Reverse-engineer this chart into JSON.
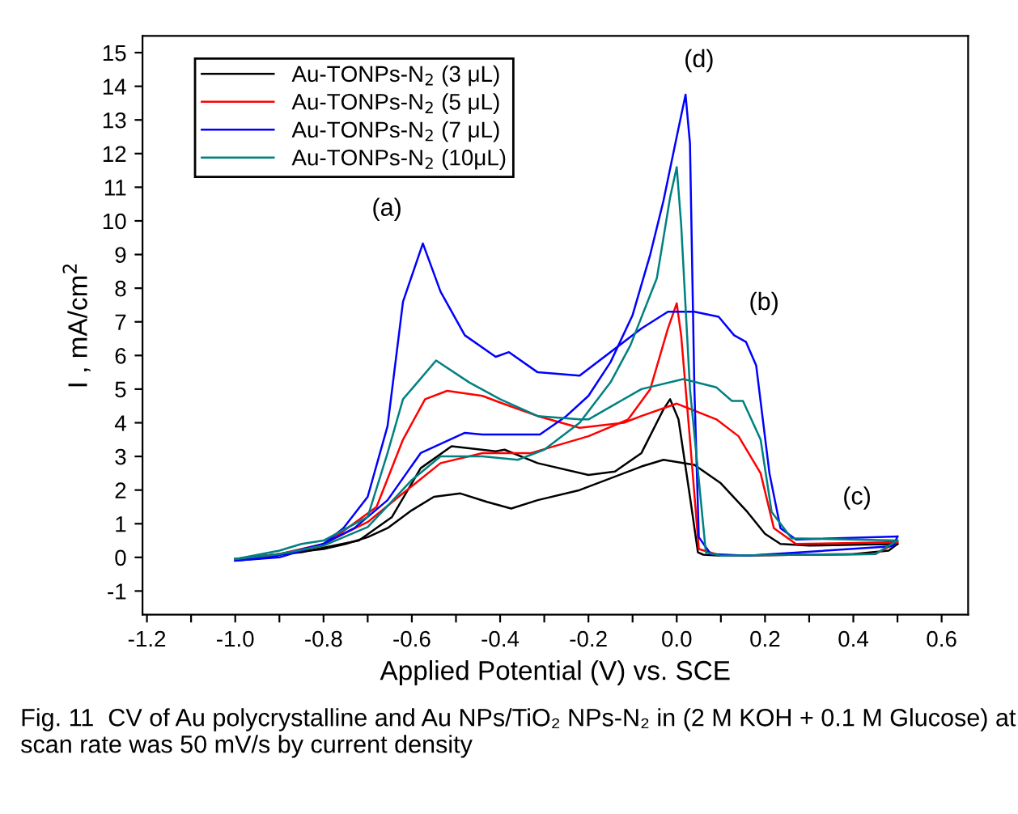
{
  "chart_data": {
    "type": "line",
    "xlabel": "Applied Potential (V) vs. SCE",
    "ylabel": "I , mA/cm$^{2}$",
    "xlim": [
      -1.21,
      0.66
    ],
    "ylim": [
      -1.7,
      15.5
    ],
    "xticks": [
      -1.2,
      {
        "value": -1.1,
        "label": null
      },
      {
        "value": -1.0,
        "label": "-1.0"
      },
      {
        "value": -0.9,
        "label": null
      },
      -0.8,
      {
        "value": -0.7,
        "label": null
      },
      -0.6,
      {
        "value": -0.5,
        "label": null
      },
      -0.4,
      {
        "value": -0.3,
        "label": null
      },
      -0.2,
      {
        "value": -0.1,
        "label": null
      },
      {
        "value": 0,
        "label": "0.0"
      },
      {
        "value": 0.1,
        "label": null
      },
      0.2,
      {
        "value": 0.3,
        "label": null
      },
      0.4,
      {
        "value": 0.5,
        "label": null
      },
      0.6
    ],
    "yticks": [
      -1,
      0,
      1,
      2,
      3,
      4,
      5,
      6,
      7,
      8,
      9,
      10,
      11,
      12,
      13,
      14,
      15
    ],
    "grid": false,
    "legend": "top left",
    "line_style": "solid",
    "marker": "none",
    "series": [
      {
        "name": "Au-TONPs-N$_{2}$ (3 μL)",
        "color": "#000000",
        "x": [
          -1.0,
          -0.9,
          -0.8,
          -0.75,
          -0.7,
          -0.655,
          -0.6,
          -0.55,
          -0.49,
          -0.43,
          -0.375,
          -0.315,
          -0.22,
          -0.08,
          -0.03,
          0.04,
          0.1,
          0.16,
          0.2,
          0.235,
          0.3,
          0.5
        ],
        "values": [
          -0.05,
          0.1,
          0.25,
          0.4,
          0.6,
          0.87,
          1.4,
          1.8,
          1.9,
          1.65,
          1.45,
          1.7,
          2.0,
          2.7,
          2.9,
          2.75,
          2.2,
          1.35,
          0.7,
          0.4,
          0.35,
          0.4
        ]
      },
      {
        "color": "#000000",
        "x": [
          0.5,
          0.48,
          0.4,
          0.1,
          0.06,
          0.048,
          0.03,
          0.004,
          -0.015,
          -0.03,
          -0.08,
          -0.14,
          -0.2,
          -0.315,
          -0.39,
          -0.41,
          -0.51,
          -0.58,
          -0.645,
          -0.72,
          -0.85,
          -1.0
        ],
        "values": [
          0.4,
          0.2,
          0.1,
          0.05,
          0.08,
          0.15,
          1.8,
          4.1,
          4.7,
          4.4,
          3.1,
          2.55,
          2.45,
          2.8,
          3.2,
          3.15,
          3.3,
          2.65,
          1.2,
          0.5,
          0.15,
          -0.05
        ]
      },
      {
        "name": "Au-TONPs-N$_{2}$ (5 μL)",
        "color": "#ff0000",
        "x": [
          -1.0,
          -0.9,
          -0.8,
          -0.68,
          -0.62,
          -0.57,
          -0.52,
          -0.44,
          -0.4,
          -0.315,
          -0.22,
          -0.12,
          -0.08,
          0.0,
          0.09,
          0.14,
          0.19,
          0.22,
          0.27,
          0.5
        ],
        "values": [
          -0.05,
          0.1,
          0.35,
          1.5,
          3.5,
          4.7,
          4.95,
          4.8,
          4.6,
          4.2,
          3.85,
          4.0,
          4.2,
          4.57,
          4.1,
          3.6,
          2.5,
          0.87,
          0.4,
          0.45
        ]
      },
      {
        "color": "#ff0000",
        "x": [
          0.5,
          0.45,
          0.1,
          0.05,
          0.03,
          0.01,
          0.0,
          -0.02,
          -0.06,
          -0.11,
          -0.2,
          -0.33,
          -0.36,
          -0.44,
          -0.535,
          -0.63,
          -0.7,
          -0.8,
          -0.9,
          -1.0
        ],
        "values": [
          0.45,
          0.1,
          0.05,
          0.25,
          3.5,
          6.6,
          7.55,
          6.8,
          5.0,
          4.1,
          3.6,
          3.1,
          3.1,
          3.1,
          2.8,
          1.8,
          1.05,
          0.4,
          0.1,
          -0.05
        ]
      },
      {
        "name": "Au-TONPs-N$_{2}$ (7 μL)",
        "color": "#0000ff",
        "x": [
          -1.0,
          -0.9,
          -0.8,
          -0.755,
          -0.7,
          -0.655,
          -0.62,
          -0.575,
          -0.535,
          -0.48,
          -0.41,
          -0.38,
          -0.315,
          -0.22,
          -0.08,
          -0.02,
          0.04,
          0.095,
          0.13,
          0.157,
          0.18,
          0.21,
          0.235,
          0.27,
          0.5
        ],
        "values": [
          -0.1,
          0.0,
          0.4,
          0.87,
          1.8,
          3.9,
          7.6,
          9.33,
          7.9,
          6.6,
          5.96,
          6.1,
          5.5,
          5.4,
          6.8,
          7.3,
          7.3,
          7.15,
          6.6,
          6.4,
          5.7,
          2.5,
          0.87,
          0.53,
          0.62
        ]
      },
      {
        "color": "#0000ff",
        "x": [
          0.5,
          0.49,
          0.16,
          0.077,
          0.05,
          0.04,
          0.03,
          0.02,
          0.0,
          -0.03,
          -0.06,
          -0.1,
          -0.15,
          -0.2,
          -0.25,
          -0.31,
          -0.44,
          -0.48,
          -0.58,
          -0.655,
          -0.73,
          -0.8,
          -0.92,
          -1.0
        ],
        "values": [
          0.62,
          0.33,
          0.05,
          0.1,
          0.6,
          5.0,
          12.3,
          13.75,
          12.5,
          10.6,
          9.0,
          7.2,
          5.8,
          4.8,
          4.2,
          3.65,
          3.65,
          3.7,
          3.1,
          1.7,
          0.87,
          0.4,
          0.0,
          -0.1
        ]
      },
      {
        "name": "Au-TONPs-N$_{2}$ (10μL)",
        "color": "#008080",
        "x": [
          -1.0,
          -0.9,
          -0.85,
          -0.8,
          -0.7,
          -0.655,
          -0.62,
          -0.545,
          -0.47,
          -0.4,
          -0.315,
          -0.22,
          -0.2,
          -0.08,
          0.015,
          0.09,
          0.125,
          0.15,
          0.19,
          0.215,
          0.26,
          0.5
        ],
        "values": [
          -0.05,
          0.2,
          0.4,
          0.5,
          1.2,
          3.1,
          4.7,
          5.85,
          5.2,
          4.7,
          4.2,
          4.1,
          4.1,
          5.0,
          5.3,
          5.05,
          4.65,
          4.65,
          3.5,
          1.35,
          0.57,
          0.5
        ]
      },
      {
        "color": "#008080",
        "x": [
          0.5,
          0.45,
          0.1,
          0.066,
          0.03,
          0.01,
          0.0,
          -0.015,
          -0.045,
          -0.105,
          -0.15,
          -0.22,
          -0.3,
          -0.36,
          -0.44,
          -0.535,
          -0.6,
          -0.65,
          -0.7,
          -0.8,
          -0.9,
          -1.0
        ],
        "values": [
          0.5,
          0.1,
          0.05,
          0.15,
          5.0,
          9.9,
          11.6,
          10.7,
          8.3,
          6.3,
          5.2,
          4.0,
          3.2,
          2.9,
          3.0,
          3.0,
          2.3,
          1.6,
          0.9,
          0.35,
          0.1,
          -0.05
        ]
      }
    ],
    "annotations": [
      {
        "text": "(a)",
        "x": -0.575,
        "y": 9.33
      },
      {
        "text": "(b)",
        "x": 0.157,
        "y": 6.4
      },
      {
        "text": "(c)",
        "x": 0.5,
        "y": 0.62
      },
      {
        "text": "(d)",
        "x": 0.02,
        "y": 13.75
      },
      "Fig. 11  CV of Au polycrystalline and Au NPs/TiO₂ NPs-N₂ in (2 M KOH + 0.1 M Glucose) at scan rate was 50 mV/s by current density"
    ]
  }
}
